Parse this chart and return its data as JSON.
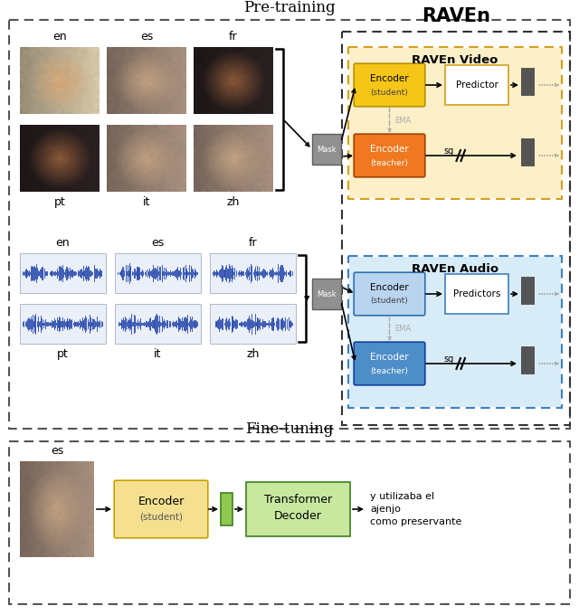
{
  "bg_color": "#ffffff",
  "pretrain_title": "Pre-training",
  "finetune_title": "Fine-tuning",
  "raven_title": "RAVEn",
  "raven_video_title": "RAVEn Video",
  "raven_audio_title": "RAVEn Audio",
  "video_langs_top": [
    "en",
    "es",
    "fr"
  ],
  "video_langs_bot": [
    "pt",
    "it",
    "zh"
  ],
  "audio_langs_top": [
    "en",
    "es",
    "fr"
  ],
  "audio_langs_bot": [
    "pt",
    "it",
    "zh"
  ],
  "enc_student_vid_fc": "#f5c518",
  "enc_teacher_vid_fc": "#f07820",
  "enc_student_aud_fc": "#b8d4ee",
  "enc_teacher_aud_fc": "#4e8ec8",
  "raven_video_box_fc": "#fdf0c8",
  "raven_audio_box_fc": "#d8ecf8",
  "raven_video_box_ec": "#d4a020",
  "raven_audio_box_ec": "#4080c0",
  "predictor_fc": "#ffffff",
  "predictor_ec": "#d4a020",
  "predictors_fc": "#ffffff",
  "predictors_ec": "#4080c0",
  "mask_fc": "#909090",
  "mask_ec": "#606060",
  "bar_fc": "#555555",
  "bar_ec": "#333333",
  "enc_ft_fc": "#f5e090",
  "enc_ft_ec": "#c8a000",
  "transformer_fc": "#c8e8a0",
  "transformer_ec": "#408020",
  "sg_box_fc": "#90c850",
  "sg_box_ec": "#408020",
  "ft_text": "y utilizaba el\najenjo\ncomo preservante",
  "ft_label": "es"
}
